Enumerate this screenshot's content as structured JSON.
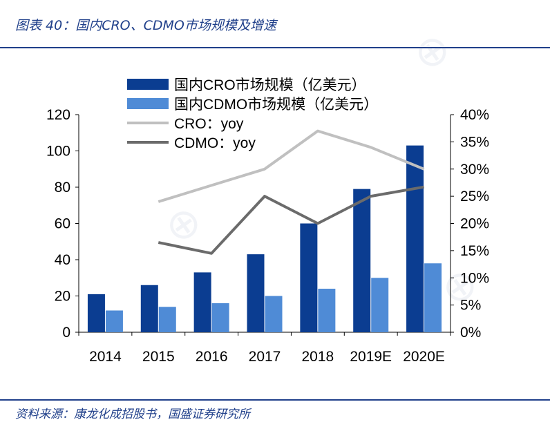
{
  "header": {
    "title": "图表 40：国内CRO、CDMO市场规模及增速"
  },
  "footer": {
    "source": "资料来源：康龙化成招股书，国盛证券研究所"
  },
  "colors": {
    "cro_bar": "#0b3d91",
    "cdmo_bar": "#4f8bd6",
    "cro_line": "#c0c0c0",
    "cdmo_line": "#6b6b6b",
    "brand": "#1f3f8a"
  },
  "chart_data": {
    "type": "bar",
    "categories": [
      "2014",
      "2015",
      "2016",
      "2017",
      "2018",
      "2019E",
      "2020E"
    ],
    "series": [
      {
        "name": "国内CRO市场规模（亿美元）",
        "kind": "bar",
        "axis": "left",
        "values": [
          21,
          26,
          33,
          43,
          60,
          79,
          103
        ]
      },
      {
        "name": "国内CDMO市场规模（亿美元）",
        "kind": "bar",
        "axis": "left",
        "values": [
          12,
          14,
          16,
          20,
          24,
          30,
          38
        ]
      },
      {
        "name": "CRO：yoy",
        "kind": "line",
        "axis": "right",
        "values": [
          null,
          0.24,
          0.27,
          0.3,
          0.37,
          0.34,
          0.3
        ]
      },
      {
        "name": "CDMO：yoy",
        "kind": "line",
        "axis": "right",
        "values": [
          null,
          0.165,
          0.145,
          0.25,
          0.2,
          0.25,
          0.267
        ]
      }
    ],
    "y_left": {
      "ylim": [
        0,
        120
      ],
      "ticks": [
        "0",
        "20",
        "40",
        "60",
        "80",
        "100",
        "120"
      ]
    },
    "y_right": {
      "ylim": [
        0,
        0.4
      ],
      "ticks": [
        "0%",
        "5%",
        "10%",
        "15%",
        "20%",
        "25%",
        "30%",
        "35%",
        "40%"
      ]
    },
    "legend": "top-left",
    "grid": false
  }
}
